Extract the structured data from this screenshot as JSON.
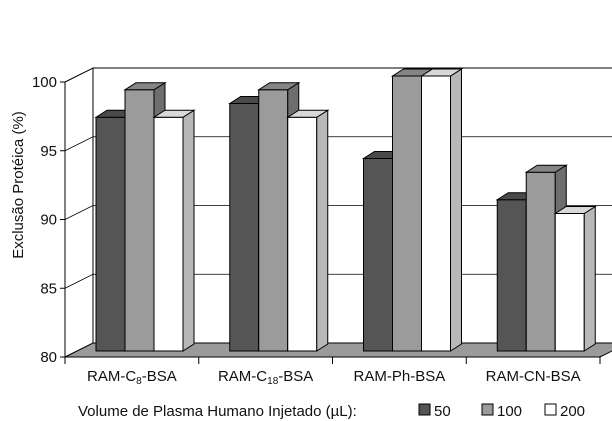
{
  "chart_data": {
    "type": "bar",
    "ylabel": "Exclusão Protéica (%)",
    "ylim": [
      80,
      100
    ],
    "yticks": [
      80,
      85,
      90,
      95,
      100
    ],
    "categories": [
      {
        "base": "RAM-C",
        "sub": "8",
        "rest": "-BSA"
      },
      {
        "base": "RAM-C",
        "sub": "18",
        "rest": "-BSA"
      },
      {
        "base": "RAM-Ph-BSA",
        "sub": "",
        "rest": ""
      },
      {
        "base": "RAM-CN-BSA",
        "sub": "",
        "rest": ""
      }
    ],
    "legend_title": "Volume de Plasma Humano Injetado (µL):",
    "series": [
      {
        "name": "50",
        "values": [
          97,
          98,
          94,
          91
        ],
        "color": "#555555",
        "side": "#3a3a3a",
        "top": "#4a4a4a"
      },
      {
        "name": "100",
        "values": [
          99,
          99,
          100,
          93
        ],
        "color": "#9b9b9b",
        "side": "#6e6e6e",
        "top": "#858585"
      },
      {
        "name": "200",
        "values": [
          97,
          97,
          100,
          90
        ],
        "color": "#ffffff",
        "side": "#b8b8b8",
        "top": "#d8d8d8"
      }
    ],
    "grid": true,
    "legend_position": "bottom"
  }
}
